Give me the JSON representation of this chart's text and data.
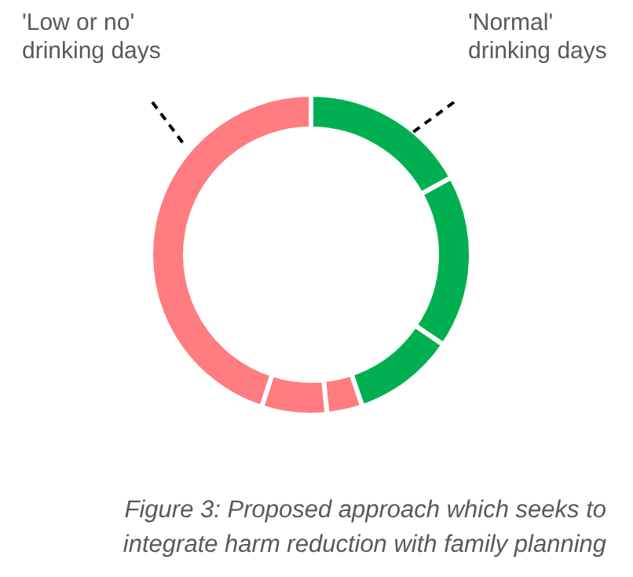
{
  "chart_data": {
    "type": "donut",
    "categories": [
      null,
      null,
      null,
      null,
      null,
      null
    ],
    "values": [
      17,
      17.5,
      10.3,
      3.6,
      6.6,
      45
    ],
    "colors": [
      "#00b050",
      "#00b050",
      "#00b050",
      "#ff7c80",
      "#ff7c80",
      "#ff7c80"
    ],
    "legend": false,
    "annotations": [
      "'Normal' drinking days",
      "'Low or no' drinking days",
      "Figure 3: Proposed approach which seeks to integrate harm reduction with family planning"
    ]
  }
}
